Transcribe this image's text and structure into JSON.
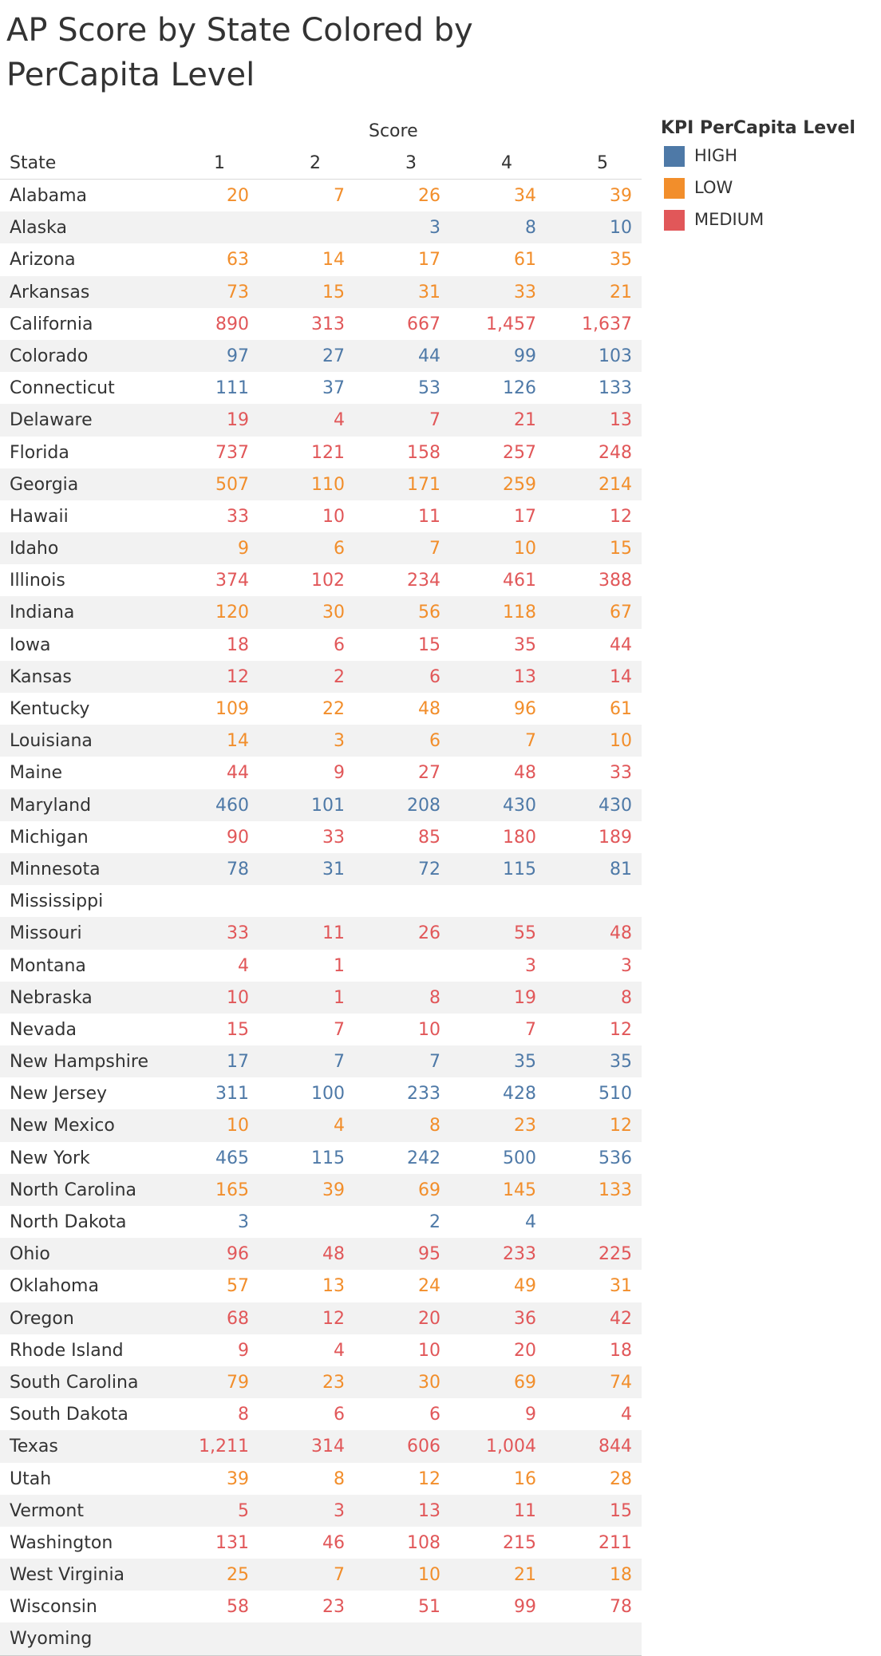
{
  "title": "AP Score by State Colored by PerCapita Level",
  "colors": {
    "HIGH": "#4e79a7",
    "LOW": "#f28e2b",
    "MEDIUM": "#e15759"
  },
  "legend": {
    "title": "KPI PerCapita Level",
    "items": [
      "HIGH",
      "LOW",
      "MEDIUM"
    ]
  },
  "chart_data": {
    "type": "table",
    "column_group_label": "Score",
    "row_header": "State",
    "columns": [
      "1",
      "2",
      "3",
      "4",
      "5"
    ],
    "rows": [
      {
        "state": "Alabama",
        "level": "LOW",
        "values": [
          "20",
          "7",
          "26",
          "34",
          "39"
        ]
      },
      {
        "state": "Alaska",
        "level": "HIGH",
        "values": [
          "",
          "",
          "3",
          "8",
          "10"
        ]
      },
      {
        "state": "Arizona",
        "level": "LOW",
        "values": [
          "63",
          "14",
          "17",
          "61",
          "35"
        ]
      },
      {
        "state": "Arkansas",
        "level": "LOW",
        "values": [
          "73",
          "15",
          "31",
          "33",
          "21"
        ]
      },
      {
        "state": "California",
        "level": "MEDIUM",
        "values": [
          "890",
          "313",
          "667",
          "1,457",
          "1,637"
        ]
      },
      {
        "state": "Colorado",
        "level": "HIGH",
        "values": [
          "97",
          "27",
          "44",
          "99",
          "103"
        ]
      },
      {
        "state": "Connecticut",
        "level": "HIGH",
        "values": [
          "111",
          "37",
          "53",
          "126",
          "133"
        ]
      },
      {
        "state": "Delaware",
        "level": "MEDIUM",
        "values": [
          "19",
          "4",
          "7",
          "21",
          "13"
        ]
      },
      {
        "state": "Florida",
        "level": "MEDIUM",
        "values": [
          "737",
          "121",
          "158",
          "257",
          "248"
        ]
      },
      {
        "state": "Georgia",
        "level": "LOW",
        "values": [
          "507",
          "110",
          "171",
          "259",
          "214"
        ]
      },
      {
        "state": "Hawaii",
        "level": "MEDIUM",
        "values": [
          "33",
          "10",
          "11",
          "17",
          "12"
        ]
      },
      {
        "state": "Idaho",
        "level": "LOW",
        "values": [
          "9",
          "6",
          "7",
          "10",
          "15"
        ]
      },
      {
        "state": "Illinois",
        "level": "MEDIUM",
        "values": [
          "374",
          "102",
          "234",
          "461",
          "388"
        ]
      },
      {
        "state": "Indiana",
        "level": "LOW",
        "values": [
          "120",
          "30",
          "56",
          "118",
          "67"
        ]
      },
      {
        "state": "Iowa",
        "level": "MEDIUM",
        "values": [
          "18",
          "6",
          "15",
          "35",
          "44"
        ]
      },
      {
        "state": "Kansas",
        "level": "MEDIUM",
        "values": [
          "12",
          "2",
          "6",
          "13",
          "14"
        ]
      },
      {
        "state": "Kentucky",
        "level": "LOW",
        "values": [
          "109",
          "22",
          "48",
          "96",
          "61"
        ]
      },
      {
        "state": "Louisiana",
        "level": "LOW",
        "values": [
          "14",
          "3",
          "6",
          "7",
          "10"
        ]
      },
      {
        "state": "Maine",
        "level": "MEDIUM",
        "values": [
          "44",
          "9",
          "27",
          "48",
          "33"
        ]
      },
      {
        "state": "Maryland",
        "level": "HIGH",
        "values": [
          "460",
          "101",
          "208",
          "430",
          "430"
        ]
      },
      {
        "state": "Michigan",
        "level": "MEDIUM",
        "values": [
          "90",
          "33",
          "85",
          "180",
          "189"
        ]
      },
      {
        "state": "Minnesota",
        "level": "HIGH",
        "values": [
          "78",
          "31",
          "72",
          "115",
          "81"
        ]
      },
      {
        "state": "Mississippi",
        "level": "",
        "values": [
          "",
          "",
          "",
          "",
          ""
        ]
      },
      {
        "state": "Missouri",
        "level": "MEDIUM",
        "values": [
          "33",
          "11",
          "26",
          "55",
          "48"
        ]
      },
      {
        "state": "Montana",
        "level": "MEDIUM",
        "values": [
          "4",
          "1",
          "",
          "3",
          "3"
        ]
      },
      {
        "state": "Nebraska",
        "level": "MEDIUM",
        "values": [
          "10",
          "1",
          "8",
          "19",
          "8"
        ]
      },
      {
        "state": "Nevada",
        "level": "MEDIUM",
        "values": [
          "15",
          "7",
          "10",
          "7",
          "12"
        ]
      },
      {
        "state": "New Hampshire",
        "level": "HIGH",
        "values": [
          "17",
          "7",
          "7",
          "35",
          "35"
        ]
      },
      {
        "state": "New Jersey",
        "level": "HIGH",
        "values": [
          "311",
          "100",
          "233",
          "428",
          "510"
        ]
      },
      {
        "state": "New Mexico",
        "level": "LOW",
        "values": [
          "10",
          "4",
          "8",
          "23",
          "12"
        ]
      },
      {
        "state": "New York",
        "level": "HIGH",
        "values": [
          "465",
          "115",
          "242",
          "500",
          "536"
        ]
      },
      {
        "state": "North Carolina",
        "level": "LOW",
        "values": [
          "165",
          "39",
          "69",
          "145",
          "133"
        ]
      },
      {
        "state": "North Dakota",
        "level": "HIGH",
        "values": [
          "3",
          "",
          "2",
          "4",
          ""
        ]
      },
      {
        "state": "Ohio",
        "level": "MEDIUM",
        "values": [
          "96",
          "48",
          "95",
          "233",
          "225"
        ]
      },
      {
        "state": "Oklahoma",
        "level": "LOW",
        "values": [
          "57",
          "13",
          "24",
          "49",
          "31"
        ]
      },
      {
        "state": "Oregon",
        "level": "MEDIUM",
        "values": [
          "68",
          "12",
          "20",
          "36",
          "42"
        ]
      },
      {
        "state": "Rhode Island",
        "level": "MEDIUM",
        "values": [
          "9",
          "4",
          "10",
          "20",
          "18"
        ]
      },
      {
        "state": "South Carolina",
        "level": "LOW",
        "values": [
          "79",
          "23",
          "30",
          "69",
          "74"
        ]
      },
      {
        "state": "South Dakota",
        "level": "MEDIUM",
        "values": [
          "8",
          "6",
          "6",
          "9",
          "4"
        ]
      },
      {
        "state": "Texas",
        "level": "MEDIUM",
        "values": [
          "1,211",
          "314",
          "606",
          "1,004",
          "844"
        ]
      },
      {
        "state": "Utah",
        "level": "LOW",
        "values": [
          "39",
          "8",
          "12",
          "16",
          "28"
        ]
      },
      {
        "state": "Vermont",
        "level": "MEDIUM",
        "values": [
          "5",
          "3",
          "13",
          "11",
          "15"
        ]
      },
      {
        "state": "Washington",
        "level": "MEDIUM",
        "values": [
          "131",
          "46",
          "108",
          "215",
          "211"
        ]
      },
      {
        "state": "West Virginia",
        "level": "LOW",
        "values": [
          "25",
          "7",
          "10",
          "21",
          "18"
        ]
      },
      {
        "state": "Wisconsin",
        "level": "MEDIUM",
        "values": [
          "58",
          "23",
          "51",
          "99",
          "78"
        ]
      },
      {
        "state": "Wyoming",
        "level": "",
        "values": [
          "",
          "",
          "",
          "",
          ""
        ]
      }
    ]
  }
}
